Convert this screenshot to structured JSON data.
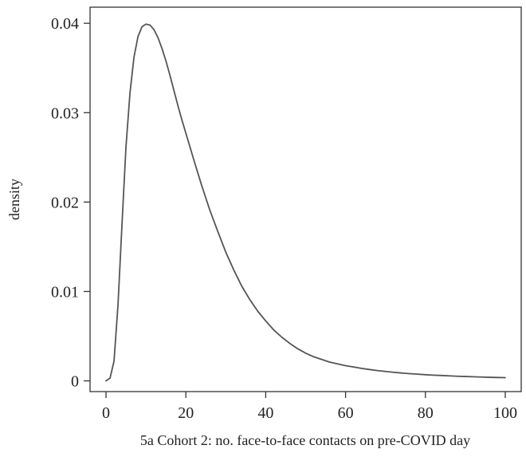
{
  "chart_data": {
    "type": "line",
    "title": "",
    "xlabel": "5a Cohort 2: no. face-to-face contacts on pre-COVID day",
    "ylabel": "density",
    "xlim": [
      -4,
      104
    ],
    "ylim": [
      -0.0012,
      0.0418
    ],
    "x_ticks": [
      0,
      20,
      40,
      60,
      80,
      100
    ],
    "x_tick_labels": [
      "0",
      "20",
      "40",
      "60",
      "80",
      "100"
    ],
    "y_ticks": [
      0,
      0.01,
      0.02,
      0.03,
      0.04
    ],
    "y_tick_labels": [
      "0",
      "0.01",
      "0.02",
      "0.03",
      "0.04"
    ],
    "grid": false,
    "legend": "none",
    "colors": {
      "line": "#555555",
      "axis": "#333333",
      "text": "#222222"
    },
    "series": [
      {
        "x": [
          0,
          1,
          2,
          3,
          4,
          5,
          6,
          7,
          8,
          9,
          10,
          11,
          12,
          13,
          14,
          15,
          16,
          17,
          18,
          19,
          20,
          22,
          24,
          26,
          28,
          30,
          32,
          34,
          36,
          38,
          40,
          42,
          44,
          46,
          48,
          50,
          52,
          54,
          56,
          58,
          60,
          62,
          64,
          66,
          68,
          70,
          72,
          74,
          76,
          78,
          80,
          82,
          84,
          86,
          88,
          90,
          92,
          94,
          96,
          98,
          100
        ],
        "values": [
          0.0,
          0.0003,
          0.0022,
          0.0085,
          0.0175,
          0.0262,
          0.0322,
          0.0362,
          0.0385,
          0.0396,
          0.0399,
          0.0398,
          0.0393,
          0.0384,
          0.0372,
          0.0358,
          0.0342,
          0.0325,
          0.0308,
          0.0292,
          0.0277,
          0.0247,
          0.0218,
          0.0191,
          0.0167,
          0.0144,
          0.0124,
          0.0106,
          0.0091,
          0.0078,
          0.0067,
          0.0057,
          0.0049,
          0.0042,
          0.0036,
          0.0031,
          0.0027,
          0.0024,
          0.0021,
          0.0019,
          0.0017,
          0.00155,
          0.0014,
          0.00127,
          0.00115,
          0.00105,
          0.00096,
          0.00088,
          0.00081,
          0.00075,
          0.00069,
          0.00064,
          0.0006,
          0.00056,
          0.00052,
          0.00049,
          0.00046,
          0.00043,
          0.0004,
          0.00038,
          0.00036
        ]
      }
    ]
  }
}
